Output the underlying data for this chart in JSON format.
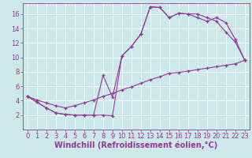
{
  "xlabel": "Windchill (Refroidissement éolien,°C)",
  "bg_color": "#cce8e8",
  "grid_color": "#ffffff",
  "line_color": "#993399",
  "xlim": [
    -0.5,
    23.5
  ],
  "ylim": [
    0,
    17.5
  ],
  "xticks": [
    0,
    1,
    2,
    3,
    4,
    5,
    6,
    7,
    8,
    9,
    10,
    11,
    12,
    13,
    14,
    15,
    16,
    17,
    18,
    19,
    20,
    21,
    22,
    23
  ],
  "yticks": [
    2,
    4,
    6,
    8,
    10,
    12,
    14,
    16
  ],
  "line1_x": [
    0,
    1,
    2,
    3,
    4,
    5,
    6,
    7,
    8,
    9,
    10,
    11,
    12,
    13,
    14,
    15,
    16,
    17,
    18,
    19,
    20,
    21,
    22,
    23
  ],
  "line1_y": [
    4.6,
    3.8,
    3.0,
    2.3,
    2.1,
    2.0,
    2.0,
    2.0,
    2.0,
    1.9,
    10.2,
    11.5,
    13.2,
    17.0,
    16.9,
    15.5,
    16.1,
    16.0,
    16.0,
    15.5,
    15.0,
    13.5,
    12.1,
    9.6
  ],
  "line2_x": [
    0,
    1,
    2,
    3,
    4,
    5,
    6,
    7,
    8,
    9,
    10,
    11,
    12,
    13,
    14,
    15,
    16,
    17,
    18,
    19,
    20,
    21,
    22,
    23
  ],
  "line2_y": [
    4.6,
    3.8,
    3.0,
    2.3,
    2.1,
    2.0,
    2.0,
    2.0,
    7.5,
    4.5,
    10.2,
    11.5,
    13.2,
    17.0,
    16.9,
    15.5,
    16.1,
    16.0,
    15.5,
    15.0,
    15.5,
    14.8,
    12.5,
    9.6
  ],
  "line3_x": [
    0,
    1,
    2,
    3,
    4,
    5,
    6,
    7,
    8,
    9,
    10,
    11,
    12,
    13,
    14,
    15,
    16,
    17,
    18,
    19,
    20,
    21,
    22,
    23
  ],
  "line3_y": [
    4.6,
    4.1,
    3.7,
    3.3,
    3.0,
    3.3,
    3.7,
    4.1,
    4.6,
    5.0,
    5.5,
    5.9,
    6.4,
    6.9,
    7.3,
    7.8,
    7.9,
    8.1,
    8.3,
    8.5,
    8.7,
    8.9,
    9.1,
    9.6
  ],
  "font_size_xlabel": 7,
  "font_size_ticks": 6
}
